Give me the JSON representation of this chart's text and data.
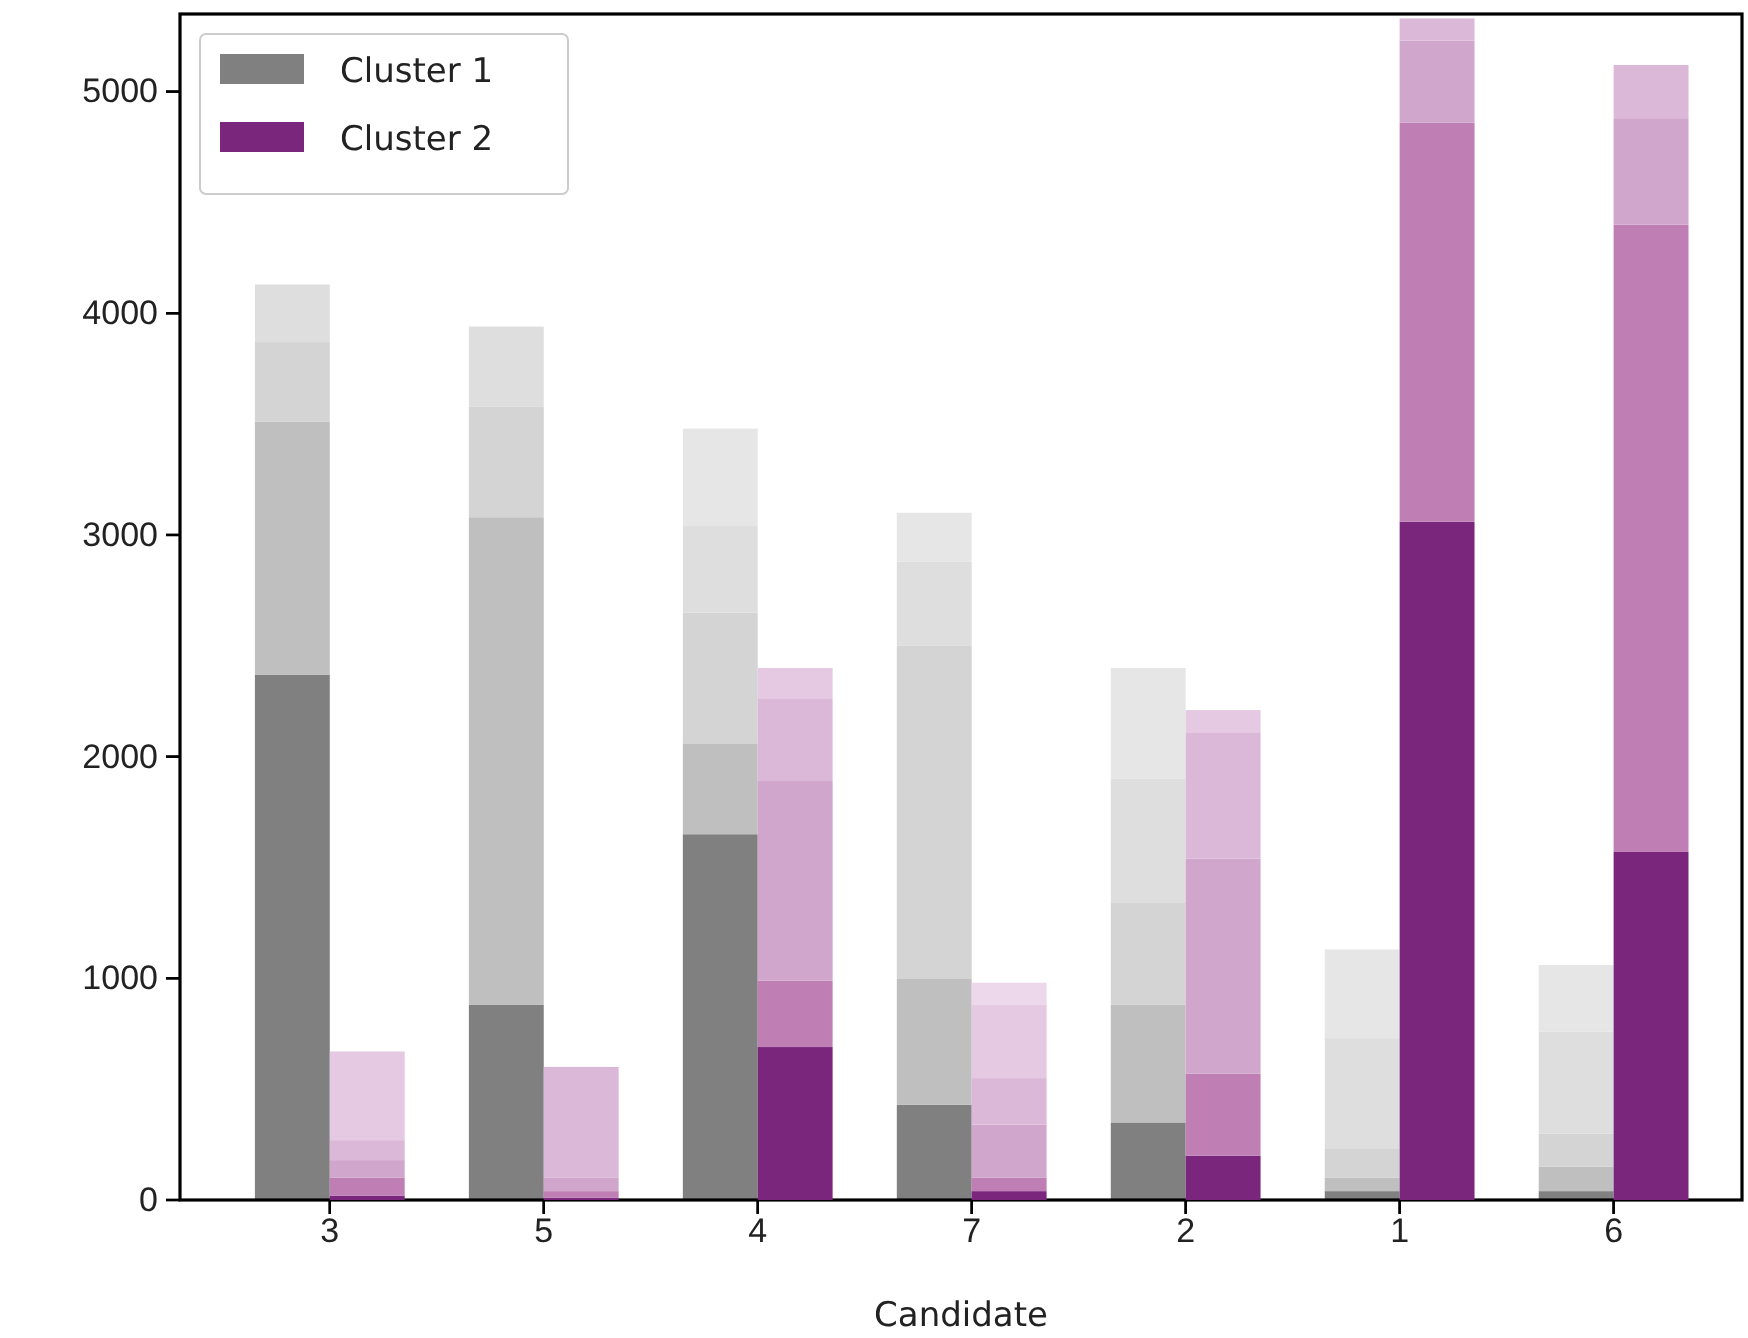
{
  "chart_data": [
    {
      "type": "bar",
      "stacked": true,
      "xlabel": "Candidate",
      "categories": [
        "3",
        "5",
        "4",
        "7",
        "2",
        "1",
        "6"
      ],
      "ylim": [
        0,
        5350
      ],
      "yticks": [
        0,
        1000,
        2000,
        3000,
        4000,
        5000
      ],
      "legend": "top left",
      "series": [
        {
          "name": "Cluster 1",
          "color": "#808080",
          "values": [
            2370,
            880,
            1650,
            430,
            350,
            40,
            40
          ]
        },
        {
          "color": "#bfbfbf",
          "values": [
            1140,
            2200,
            410,
            570,
            530,
            60,
            110
          ]
        },
        {
          "color": "#d4d4d4",
          "values": [
            360,
            500,
            590,
            1500,
            460,
            130,
            150
          ]
        },
        {
          "color": "#dedede",
          "values": [
            260,
            360,
            390,
            380,
            560,
            500,
            460
          ]
        },
        {
          "color": "#e6e6e6",
          "values": [
            null,
            null,
            440,
            220,
            500,
            400,
            300
          ]
        }
      ]
    },
    {
      "type": "bar",
      "stacked": true,
      "categories": [
        null,
        null,
        null,
        null,
        null,
        null,
        null
      ],
      "ylim": [
        0,
        5350
      ],
      "yticks": [
        0,
        1000,
        2000,
        3000,
        4000,
        5000
      ],
      "tick_labels": false,
      "legend": "top left",
      "series": [
        {
          "name": "Cluster 2",
          "color": "#7b267d",
          "values": [
            20,
            10,
            690,
            40,
            200,
            3060,
            1570
          ]
        },
        {
          "color": "#bf7fb5",
          "values": [
            80,
            30,
            300,
            60,
            370,
            1800,
            2830
          ]
        },
        {
          "color": "#d0a6cc",
          "values": [
            80,
            60,
            900,
            240,
            970,
            370,
            480
          ]
        },
        {
          "color": "#dcb8d8",
          "values": [
            90,
            500,
            370,
            210,
            570,
            100,
            240
          ]
        },
        {
          "color": "#e5c9e2",
          "values": [
            400,
            null,
            140,
            330,
            100,
            null,
            null
          ]
        },
        {
          "color": "#ecd8ea",
          "values": [
            null,
            null,
            null,
            100,
            null,
            null,
            null
          ]
        }
      ]
    }
  ]
}
